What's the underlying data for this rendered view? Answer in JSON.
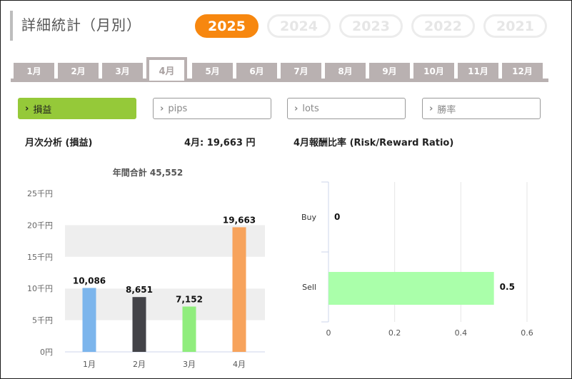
{
  "title": "詳細統計（月別）",
  "years": [
    {
      "label": "2025",
      "active": true
    },
    {
      "label": "2024",
      "active": false
    },
    {
      "label": "2023",
      "active": false
    },
    {
      "label": "2022",
      "active": false
    },
    {
      "label": "2021",
      "active": false
    }
  ],
  "months": [
    {
      "label": "1月",
      "active": false
    },
    {
      "label": "2月",
      "active": false
    },
    {
      "label": "3月",
      "active": false
    },
    {
      "label": "4月",
      "active": true
    },
    {
      "label": "5月",
      "active": false
    },
    {
      "label": "6月",
      "active": false
    },
    {
      "label": "7月",
      "active": false
    },
    {
      "label": "8月",
      "active": false
    },
    {
      "label": "9月",
      "active": false
    },
    {
      "label": "10月",
      "active": false
    },
    {
      "label": "11月",
      "active": false
    },
    {
      "label": "12月",
      "active": false
    }
  ],
  "metrics": [
    {
      "label": "損益",
      "active": true
    },
    {
      "label": "pips",
      "active": false
    },
    {
      "label": "lots",
      "active": false
    },
    {
      "label": "勝率",
      "active": false
    }
  ],
  "left_section": {
    "title": "月次分析 (損益)",
    "month_total": "4月:  19,663 円"
  },
  "right_section": {
    "title": "4月報酬比率 (Risk/Reward Ratio)"
  },
  "colors": {
    "accent": "#f7870f",
    "active_metric": "#95c939",
    "tab": "#b9b1b1"
  },
  "chart_data": [
    {
      "type": "bar",
      "title": "年間合計 45,552",
      "categories": [
        "1月",
        "2月",
        "3月",
        "4月"
      ],
      "values": [
        10086,
        8651,
        7152,
        19663
      ],
      "labels": [
        "10,086",
        "8,651",
        "7,152",
        "19,663"
      ],
      "colors": [
        "#7cb5ec",
        "#434348",
        "#90ed7d",
        "#f7a35c"
      ],
      "yticks": [
        {
          "value": 0,
          "label": "0円"
        },
        {
          "value": 5000,
          "label": "5千円"
        },
        {
          "value": 10000,
          "label": "10千円"
        },
        {
          "value": 15000,
          "label": "15千円"
        },
        {
          "value": 20000,
          "label": "20千円"
        },
        {
          "value": 25000,
          "label": "25千円"
        }
      ],
      "ylim": [
        0,
        25000
      ],
      "grid": "alternating-bands"
    },
    {
      "type": "bar",
      "orientation": "horizontal",
      "categories": [
        "Buy",
        "Sell"
      ],
      "values": [
        0,
        0.5
      ],
      "labels": [
        "0",
        "0.5"
      ],
      "colors": [
        "#aaffaa",
        "#aaffaa"
      ],
      "xticks": [
        {
          "value": 0,
          "label": "0"
        },
        {
          "value": 0.2,
          "label": "0.2"
        },
        {
          "value": 0.4,
          "label": "0.4"
        },
        {
          "value": 0.6,
          "label": "0.6"
        }
      ],
      "xlim": [
        0,
        0.6
      ],
      "grid": true
    }
  ]
}
